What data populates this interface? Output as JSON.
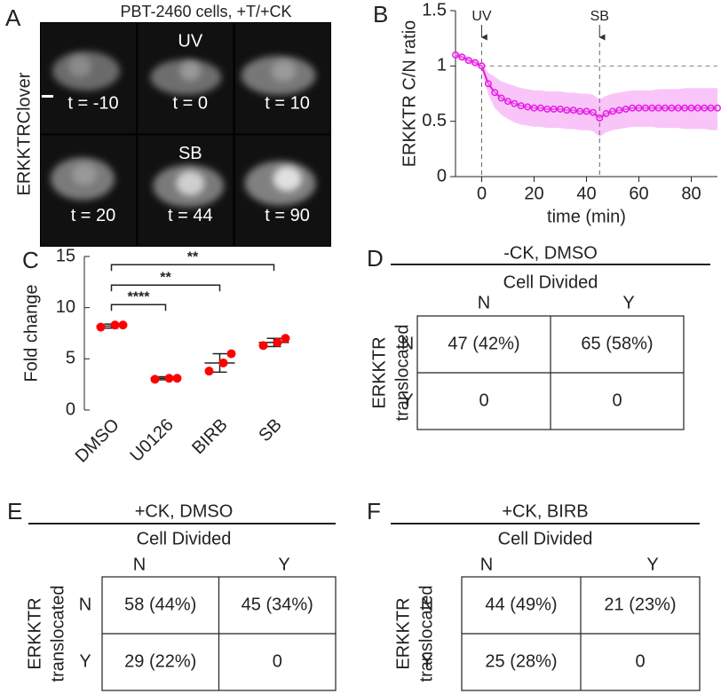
{
  "panel_a": {
    "letter": "A",
    "title": "PBT-2460 cells, +T/+CK",
    "ylabel": "ERKKTRClover",
    "tiles": [
      {
        "label": "t = -10"
      },
      {
        "label": "t = 0",
        "marker": "UV"
      },
      {
        "label": "t = 10"
      },
      {
        "label": "t = 20"
      },
      {
        "label": "t = 44",
        "marker": "SB"
      },
      {
        "label": "t = 90"
      }
    ]
  },
  "chart_data": [
    {
      "panel": "B",
      "type": "line",
      "xlabel": "time (min)",
      "ylabel": "ERKKTR C/N ratio",
      "x": [
        -10,
        -7.5,
        -5,
        -2.5,
        0,
        2.5,
        5,
        7.5,
        10,
        12.5,
        15,
        17.5,
        20,
        22.5,
        25,
        27.5,
        30,
        32.5,
        35,
        37.5,
        40,
        42.5,
        45,
        47.5,
        50,
        52.5,
        55,
        57.5,
        60,
        62.5,
        65,
        67.5,
        70,
        72.5,
        75,
        77.5,
        80,
        82.5,
        85,
        87.5,
        90
      ],
      "series": [
        {
          "color": "#e619e6",
          "values": [
            1.1,
            1.08,
            1.05,
            1.03,
            1.0,
            0.84,
            0.76,
            0.71,
            0.68,
            0.66,
            0.64,
            0.63,
            0.62,
            0.62,
            0.61,
            0.61,
            0.61,
            0.6,
            0.6,
            0.59,
            0.59,
            0.58,
            0.53,
            0.57,
            0.59,
            0.6,
            0.61,
            0.62,
            0.62,
            0.62,
            0.62,
            0.62,
            0.62,
            0.62,
            0.62,
            0.62,
            0.62,
            0.62,
            0.62,
            0.62,
            0.62
          ],
          "lower": [
            1.07,
            1.05,
            1.02,
            1.0,
            0.97,
            0.74,
            0.62,
            0.56,
            0.52,
            0.49,
            0.47,
            0.46,
            0.45,
            0.45,
            0.44,
            0.44,
            0.44,
            0.43,
            0.43,
            0.42,
            0.42,
            0.41,
            0.36,
            0.4,
            0.42,
            0.43,
            0.44,
            0.45,
            0.45,
            0.45,
            0.45,
            0.44,
            0.44,
            0.44,
            0.44,
            0.43,
            0.43,
            0.43,
            0.43,
            0.42,
            0.42
          ],
          "upper": [
            1.13,
            1.11,
            1.08,
            1.06,
            1.03,
            0.94,
            0.9,
            0.86,
            0.84,
            0.82,
            0.8,
            0.79,
            0.78,
            0.78,
            0.77,
            0.77,
            0.77,
            0.76,
            0.76,
            0.75,
            0.75,
            0.74,
            0.7,
            0.73,
            0.75,
            0.76,
            0.77,
            0.78,
            0.78,
            0.78,
            0.78,
            0.79,
            0.79,
            0.79,
            0.79,
            0.8,
            0.8,
            0.8,
            0.8,
            0.8,
            0.8
          ]
        }
      ],
      "xlim": [
        -10,
        90
      ],
      "ylim": [
        0,
        1.5
      ],
      "xticks": [
        0,
        20,
        40,
        60,
        80
      ],
      "yticks": [
        0,
        0.5,
        1,
        1.5
      ],
      "reference_line": 1,
      "annotations": [
        {
          "x": 0,
          "label": "UV"
        },
        {
          "x": 45,
          "label": "SB"
        }
      ]
    },
    {
      "panel": "C",
      "type": "strip",
      "ylabel": "Fold change",
      "categories": [
        "DMSO",
        "U0126",
        "BIRB",
        "SB"
      ],
      "series": [
        {
          "color": "#ff0000",
          "values": [
            [
              8.1,
              8.3,
              8.3
            ],
            [
              3.0,
              3.1,
              3.1
            ],
            [
              3.8,
              4.6,
              5.5
            ],
            [
              6.3,
              6.6,
              7.0
            ]
          ]
        }
      ],
      "means": [
        8.2,
        3.1,
        4.6,
        6.6
      ],
      "errors": [
        0.2,
        0.15,
        0.9,
        0.4
      ],
      "ylim": [
        0,
        15
      ],
      "yticks": [
        0,
        5,
        10,
        15
      ],
      "significance": [
        {
          "pair": [
            "DMSO",
            "U0126"
          ],
          "y": 10.3,
          "label": "****"
        },
        {
          "pair": [
            "DMSO",
            "BIRB"
          ],
          "y": 12.2,
          "label": "**"
        },
        {
          "pair": [
            "DMSO",
            "SB"
          ],
          "y": 14.2,
          "label": "**"
        }
      ]
    }
  ],
  "tables": [
    {
      "letter": "D",
      "title": "-CK, DMSO",
      "column_group": "Cell Divided",
      "columns": [
        "N",
        "Y"
      ],
      "row_group": [
        "ERKKTR",
        "translocated"
      ],
      "rows": [
        {
          "label": "N",
          "cells": [
            "47 (42%)",
            "65 (58%)"
          ]
        },
        {
          "label": "Y",
          "cells": [
            "0",
            "0"
          ]
        }
      ]
    },
    {
      "letter": "E",
      "title": "+CK, DMSO",
      "column_group": "Cell Divided",
      "columns": [
        "N",
        "Y"
      ],
      "row_group": [
        "ERKKTR",
        "translocated"
      ],
      "rows": [
        {
          "label": "N",
          "cells": [
            "58 (44%)",
            "45 (34%)"
          ]
        },
        {
          "label": "Y",
          "cells": [
            "29 (22%)",
            "0"
          ]
        }
      ]
    },
    {
      "letter": "F",
      "title": "+CK, BIRB",
      "column_group": "Cell Divided",
      "columns": [
        "N",
        "Y"
      ],
      "row_group": [
        "ERKKTR",
        "translocated"
      ],
      "rows": [
        {
          "label": "N",
          "cells": [
            "44 (49%)",
            "21 (23%)"
          ]
        },
        {
          "label": "Y",
          "cells": [
            "25 (28%)",
            "0"
          ]
        }
      ]
    }
  ]
}
